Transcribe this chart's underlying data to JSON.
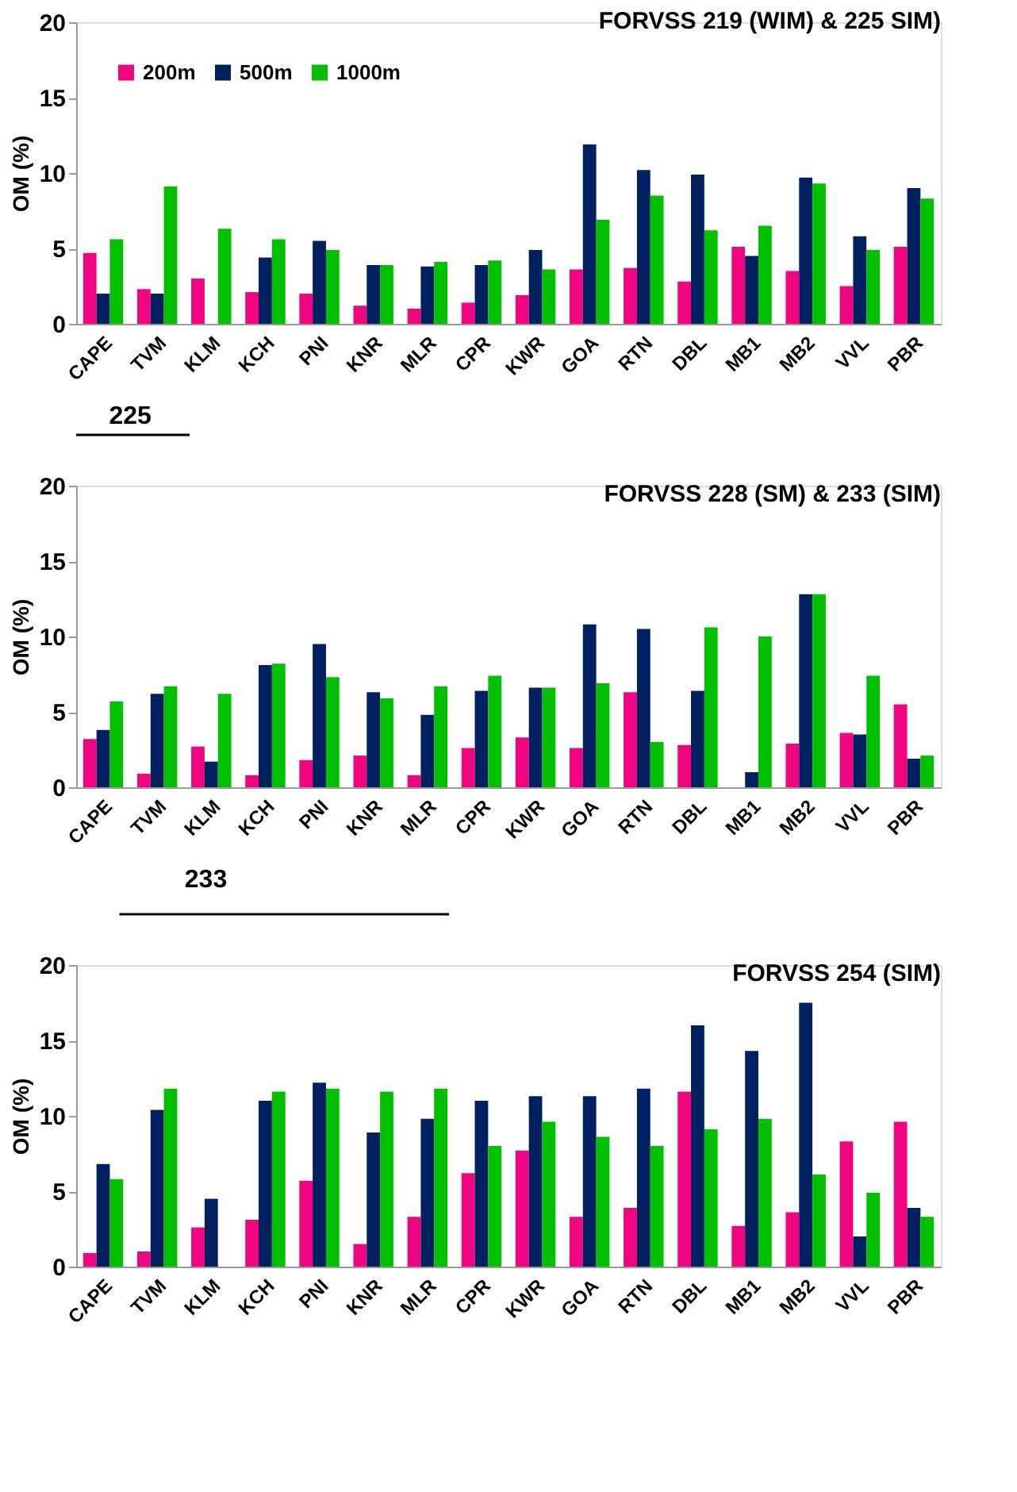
{
  "chart_data": [
    {
      "type": "bar",
      "title": "FORVSS 219 (WIM) & 225 SIM)",
      "ylabel": "OM (%)",
      "categories": [
        "CAPE",
        "TVM",
        "KLM",
        "KCH",
        "PNI",
        "KNR",
        "MLR",
        "CPR",
        "KWR",
        "GOA",
        "RTN",
        "DBL",
        "MB1",
        "MB2",
        "VVL",
        "PBR"
      ],
      "ylim": [
        0,
        20
      ],
      "yticks": [
        0,
        5,
        10,
        15,
        20
      ],
      "grid": false,
      "legend": "top left",
      "annotations": [
        "225"
      ],
      "series": [
        {
          "name": "200m",
          "color": "#f0047f",
          "values": [
            4.7,
            2.3,
            3.0,
            2.1,
            2.0,
            1.2,
            1.0,
            1.4,
            1.9,
            3.6,
            3.7,
            2.8,
            5.1,
            3.5,
            2.5,
            5.1
          ]
        },
        {
          "name": "500m",
          "color": "#002060",
          "values": [
            2.0,
            2.0,
            null,
            4.4,
            5.5,
            3.9,
            3.8,
            3.9,
            4.9,
            11.9,
            10.2,
            9.9,
            4.5,
            9.7,
            5.8,
            9.0
          ]
        },
        {
          "name": "1000m",
          "color": "#00c000",
          "values": [
            5.6,
            9.1,
            6.3,
            5.6,
            4.9,
            3.9,
            4.1,
            4.2,
            3.6,
            6.9,
            8.5,
            6.2,
            6.5,
            9.3,
            4.9,
            8.3
          ]
        }
      ]
    },
    {
      "type": "bar",
      "title": "FORVSS 228 (SM) & 233 (SIM)",
      "ylabel": "OM (%)",
      "categories": [
        "CAPE",
        "TVM",
        "KLM",
        "KCH",
        "PNI",
        "KNR",
        "MLR",
        "CPR",
        "KWR",
        "GOA",
        "RTN",
        "DBL",
        "MB1",
        "MB2",
        "VVL",
        "PBR"
      ],
      "ylim": [
        0,
        20
      ],
      "yticks": [
        0,
        5,
        10,
        15,
        20
      ],
      "grid": false,
      "annotations": [
        "233"
      ],
      "series": [
        {
          "color": "#f0047f",
          "values": [
            3.2,
            0.9,
            2.7,
            0.8,
            1.8,
            2.1,
            0.8,
            2.6,
            3.3,
            2.6,
            6.3,
            2.8,
            null,
            2.9,
            3.6,
            5.5
          ]
        },
        {
          "color": "#002060",
          "values": [
            3.8,
            6.2,
            1.7,
            8.1,
            9.5,
            6.3,
            4.8,
            6.4,
            6.6,
            10.8,
            10.5,
            6.4,
            1.0,
            12.8,
            3.5,
            1.9
          ]
        },
        {
          "color": "#00c000",
          "values": [
            5.7,
            6.7,
            6.2,
            8.2,
            7.3,
            5.9,
            6.7,
            7.4,
            6.6,
            6.9,
            3.0,
            10.6,
            10.0,
            12.8,
            7.4,
            2.1
          ]
        }
      ]
    },
    {
      "type": "bar",
      "title": "FORVSS 254 (SIM)",
      "ylabel": "OM (%)",
      "categories": [
        "CAPE",
        "TVM",
        "KLM",
        "KCH",
        "PNI",
        "KNR",
        "MLR",
        "CPR",
        "KWR",
        "GOA",
        "RTN",
        "DBL",
        "MB1",
        "MB2",
        "VVL",
        "PBR"
      ],
      "ylim": [
        0,
        20
      ],
      "yticks": [
        0,
        5,
        10,
        15,
        20
      ],
      "grid": false,
      "series": [
        {
          "color": "#f0047f",
          "values": [
            0.9,
            1.0,
            2.6,
            3.1,
            5.7,
            1.5,
            3.3,
            6.2,
            7.7,
            3.3,
            3.9,
            11.6,
            2.7,
            3.6,
            8.3,
            9.6
          ]
        },
        {
          "color": "#002060",
          "values": [
            6.8,
            10.4,
            4.5,
            11.0,
            12.2,
            8.9,
            9.8,
            11.0,
            11.3,
            11.3,
            11.8,
            16.0,
            14.3,
            17.5,
            2.0,
            3.9
          ]
        },
        {
          "color": "#00c000",
          "values": [
            5.8,
            11.8,
            null,
            11.6,
            11.8,
            11.6,
            11.8,
            8.0,
            9.6,
            8.6,
            8.0,
            9.1,
            9.8,
            6.1,
            4.9,
            3.3
          ]
        }
      ]
    }
  ]
}
